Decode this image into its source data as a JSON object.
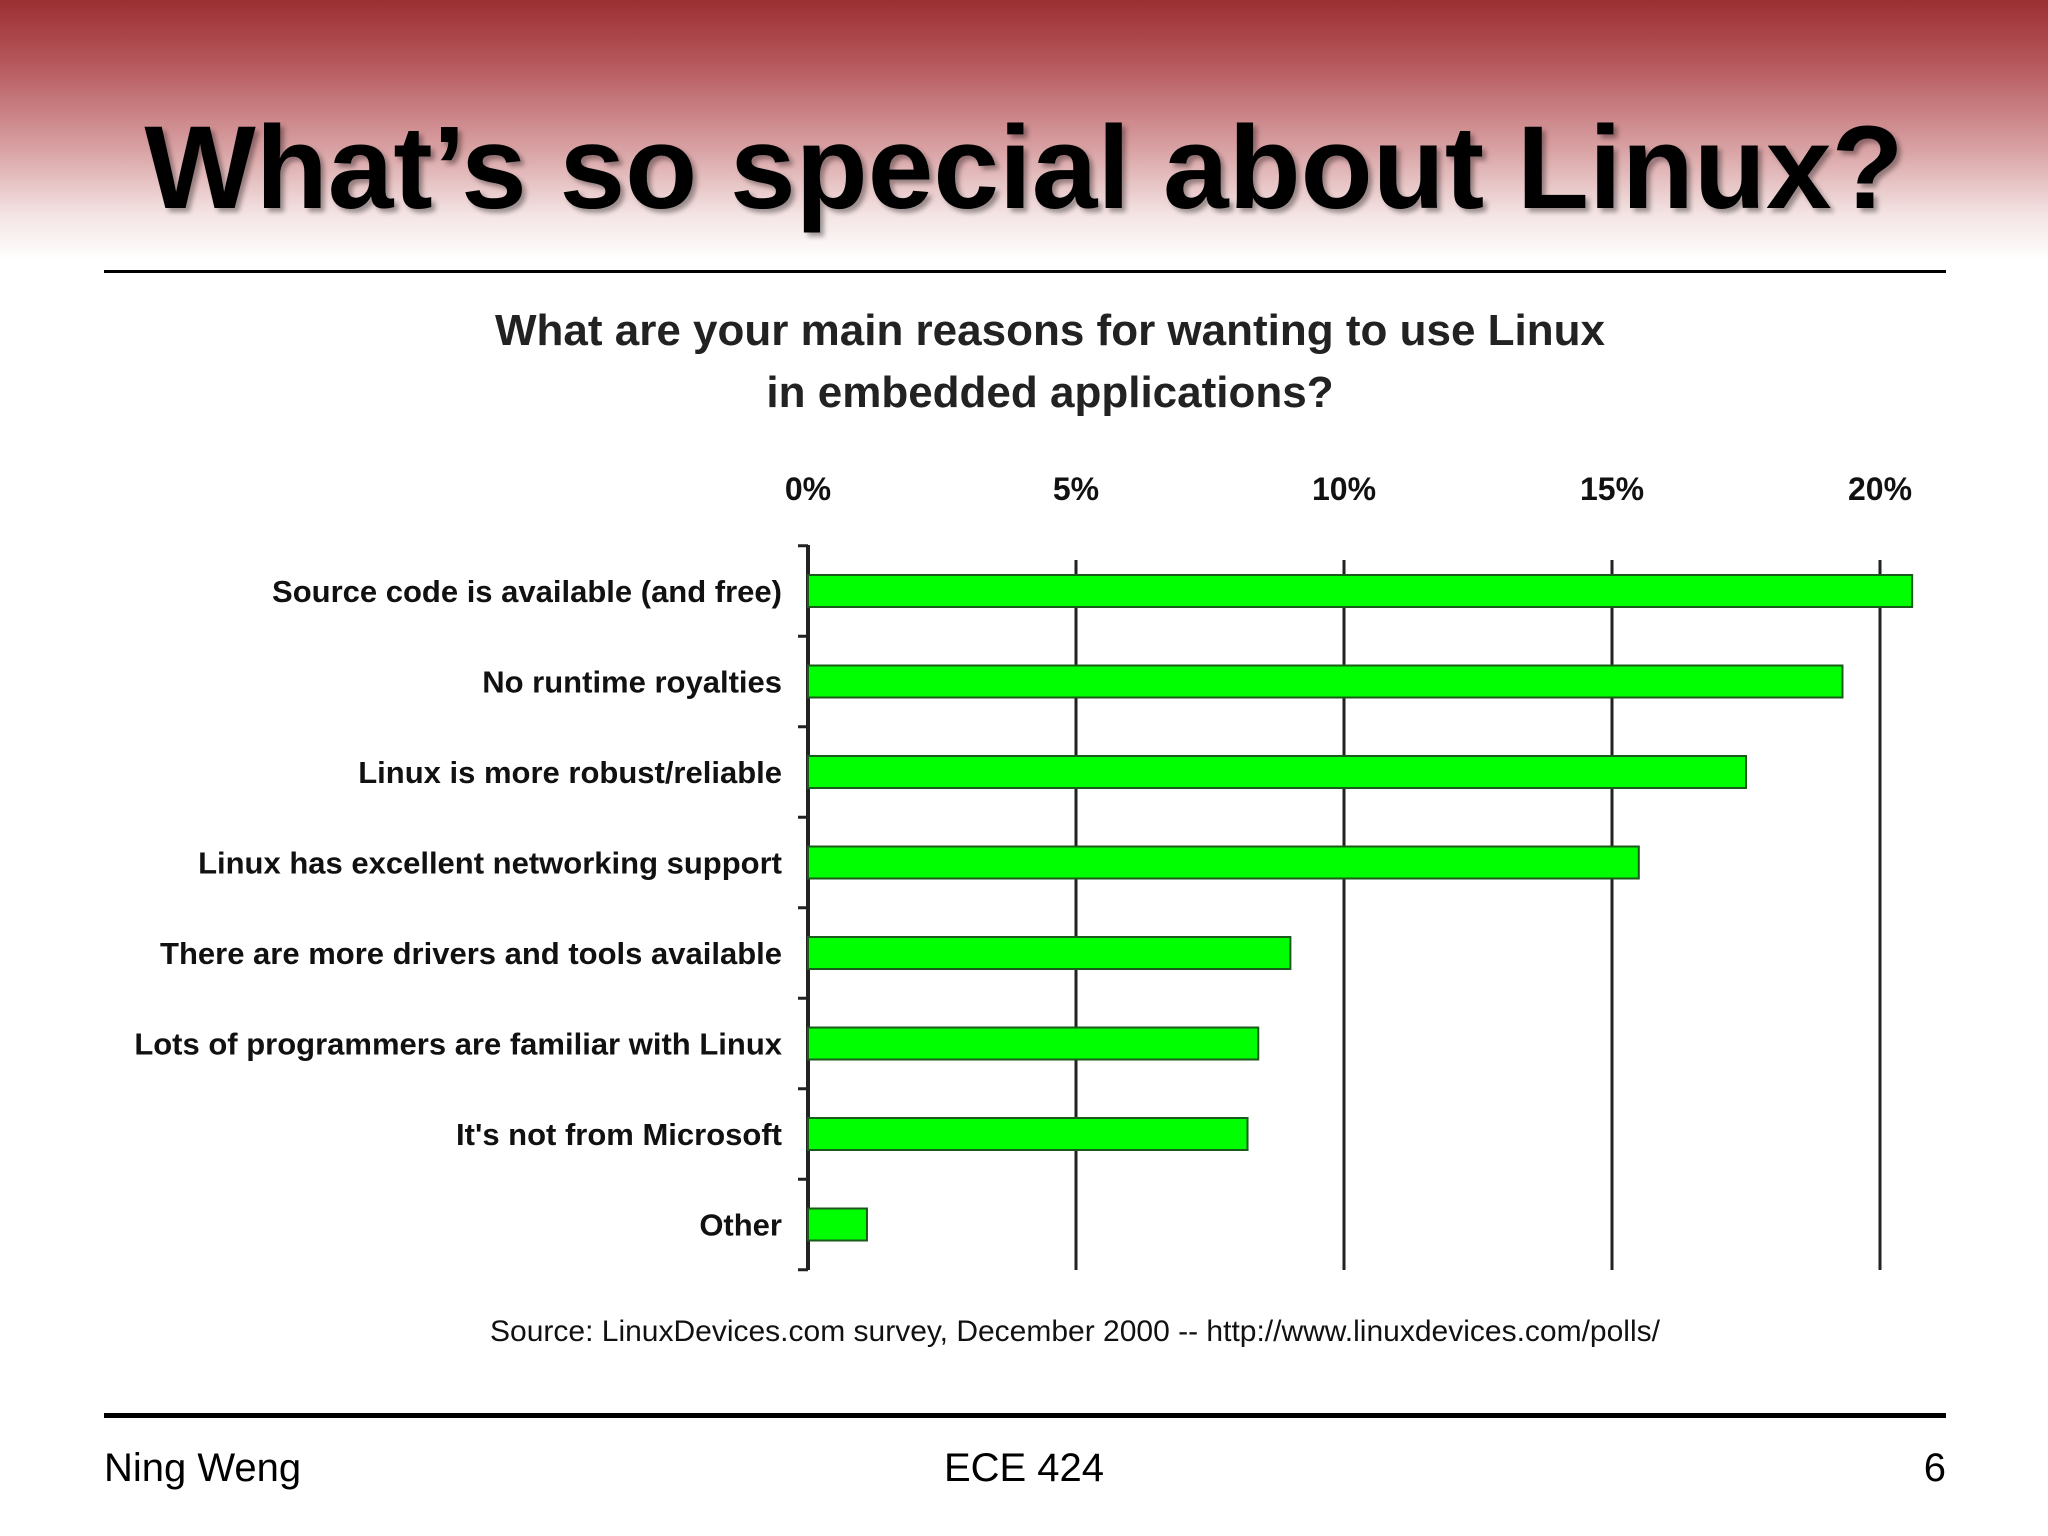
{
  "slide": {
    "title": "What’s so special about Linux?",
    "footer_left": "Ning Weng",
    "footer_center": "ECE 424",
    "footer_right": "6"
  },
  "colors": {
    "band_top": "#9b2f32",
    "bar_fill": "#00ff00",
    "bar_stroke": "#1a5a1a"
  },
  "chart_data": {
    "type": "bar",
    "orientation": "horizontal",
    "title_lines": [
      "What are your main reasons for wanting to use Linux",
      "in embedded applications?"
    ],
    "categories": [
      "Source code is available (and free)",
      "No runtime royalties",
      "Linux is more robust/reliable",
      "Linux has excellent networking support",
      "There are more drivers and tools available",
      "Lots of programmers are familiar with Linux",
      "It's not from Microsoft",
      "Other"
    ],
    "values": [
      20.6,
      19.3,
      17.5,
      15.5,
      9.0,
      8.4,
      8.2,
      1.1
    ],
    "unit": "%",
    "xlim": [
      0,
      20
    ],
    "xticks": [
      0,
      5,
      10,
      15,
      20
    ],
    "xtick_labels": [
      "0%",
      "5%",
      "10%",
      "15%",
      "20%"
    ],
    "xaxis_position": "top",
    "grid": "vertical lines at major ticks",
    "legend": "none",
    "source": "Source:  LinuxDevices.com survey, December 2000 -- http://www.linuxdevices.com/polls/"
  }
}
